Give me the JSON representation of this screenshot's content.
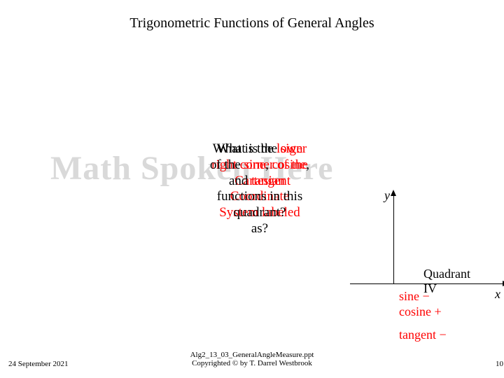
{
  "title": "Trigonometric Functions of General Angles",
  "watermark": "Math Spoken Here",
  "question": {
    "back_line1_a": "What is the ",
    "back_line1_b": "lower",
    "back_line2": "right corner of the",
    "back_line3": "Cartesian",
    "back_line4": "Coordinate",
    "back_line5": "System labeled",
    "back_line6": "as?",
    "front_line1_a": "What is the ",
    "front_line1_b": "sign",
    "front_line2_a": "of the ",
    "front_line2_b": "sine",
    "front_line2_c": ",",
    "front_line2_d": " cosine",
    "front_line2_e": ",",
    "front_line3_a": "and",
    "front_line3_b": " tangent",
    "front_line4": "functions in this",
    "front_line5": "quadrant?"
  },
  "axes": {
    "y_label": "y",
    "x_label": "x",
    "quadrant_label": "Quadrant IV",
    "sine": "sine −",
    "cosine": "cosine +",
    "tangent": "tangent −"
  },
  "footer": {
    "date": "24 September 2021",
    "center_line1": "Alg2_13_03_GeneralAngleMeasure.ppt",
    "center_line2": "Copyrighted © by T. Darrel Westbrook",
    "page": "10"
  },
  "colors": {
    "accent": "#ff0000",
    "watermark": "#d9d9d9",
    "text": "#000000",
    "background": "#ffffff"
  }
}
